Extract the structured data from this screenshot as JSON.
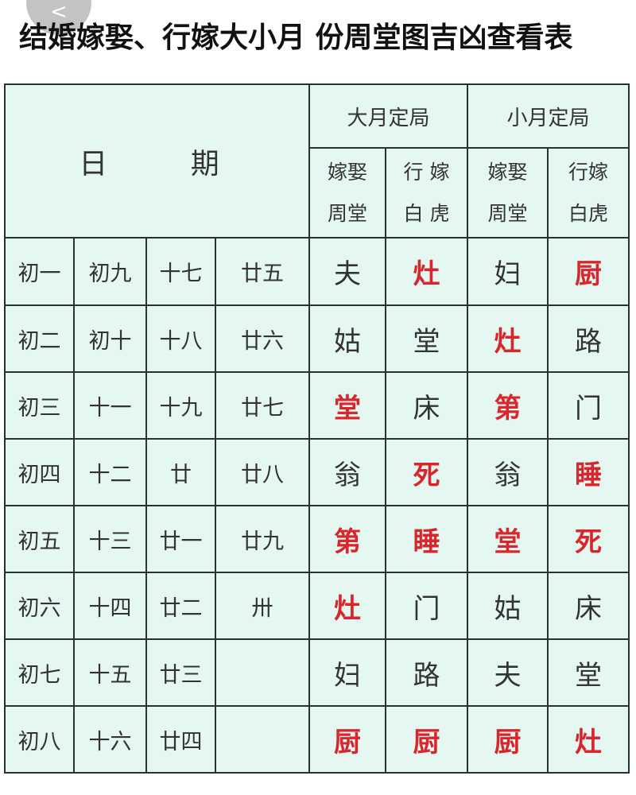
{
  "title": "结婚嫁娶、行嫁大小月 份周堂图吉凶查看表",
  "back_icon": "chevron-left-icon",
  "colors": {
    "background": "#e4f7f1",
    "red": "#d9262c",
    "text": "#333333"
  },
  "table": {
    "date_header": [
      "日",
      "期"
    ],
    "big_month": "大月定局",
    "small_month": "小月定局",
    "sub_headers": [
      [
        "嫁娶",
        "周堂"
      ],
      [
        "行 嫁",
        "白 虎"
      ],
      [
        "嫁娶",
        "周堂"
      ],
      [
        "行嫁",
        "白虎"
      ]
    ],
    "rows": [
      {
        "dates": [
          "初一",
          "初九",
          "十七",
          "廿五"
        ],
        "values": [
          {
            "t": "夫",
            "red": false
          },
          {
            "t": "灶",
            "red": true
          },
          {
            "t": "妇",
            "red": false
          },
          {
            "t": "厨",
            "red": true
          }
        ]
      },
      {
        "dates": [
          "初二",
          "初十",
          "十八",
          "廿六"
        ],
        "values": [
          {
            "t": "姑",
            "red": false
          },
          {
            "t": "堂",
            "red": false
          },
          {
            "t": "灶",
            "red": true
          },
          {
            "t": "路",
            "red": false
          }
        ]
      },
      {
        "dates": [
          "初三",
          "十一",
          "十九",
          "廿七"
        ],
        "values": [
          {
            "t": "堂",
            "red": true
          },
          {
            "t": "床",
            "red": false
          },
          {
            "t": "第",
            "red": true
          },
          {
            "t": "门",
            "red": false
          }
        ]
      },
      {
        "dates": [
          "初四",
          "十二",
          "廿",
          "廿八"
        ],
        "values": [
          {
            "t": "翁",
            "red": false
          },
          {
            "t": "死",
            "red": true
          },
          {
            "t": "翁",
            "red": false
          },
          {
            "t": "睡",
            "red": true
          }
        ]
      },
      {
        "dates": [
          "初五",
          "十三",
          "廿一",
          "廿九"
        ],
        "values": [
          {
            "t": "第",
            "red": true
          },
          {
            "t": "睡",
            "red": true
          },
          {
            "t": "堂",
            "red": true
          },
          {
            "t": "死",
            "red": true
          }
        ]
      },
      {
        "dates": [
          "初六",
          "十四",
          "廿二",
          "卅"
        ],
        "values": [
          {
            "t": "灶",
            "red": true
          },
          {
            "t": "门",
            "red": false
          },
          {
            "t": "姑",
            "red": false
          },
          {
            "t": "床",
            "red": false
          }
        ]
      },
      {
        "dates": [
          "初七",
          "十五",
          "廿三",
          ""
        ],
        "values": [
          {
            "t": "妇",
            "red": false
          },
          {
            "t": "路",
            "red": false
          },
          {
            "t": "夫",
            "red": false
          },
          {
            "t": "堂",
            "red": false
          }
        ]
      },
      {
        "dates": [
          "初八",
          "十六",
          "廿四",
          ""
        ],
        "values": [
          {
            "t": "厨",
            "red": true
          },
          {
            "t": "厨",
            "red": true
          },
          {
            "t": "厨",
            "red": true
          },
          {
            "t": "灶",
            "red": true
          }
        ]
      }
    ]
  }
}
